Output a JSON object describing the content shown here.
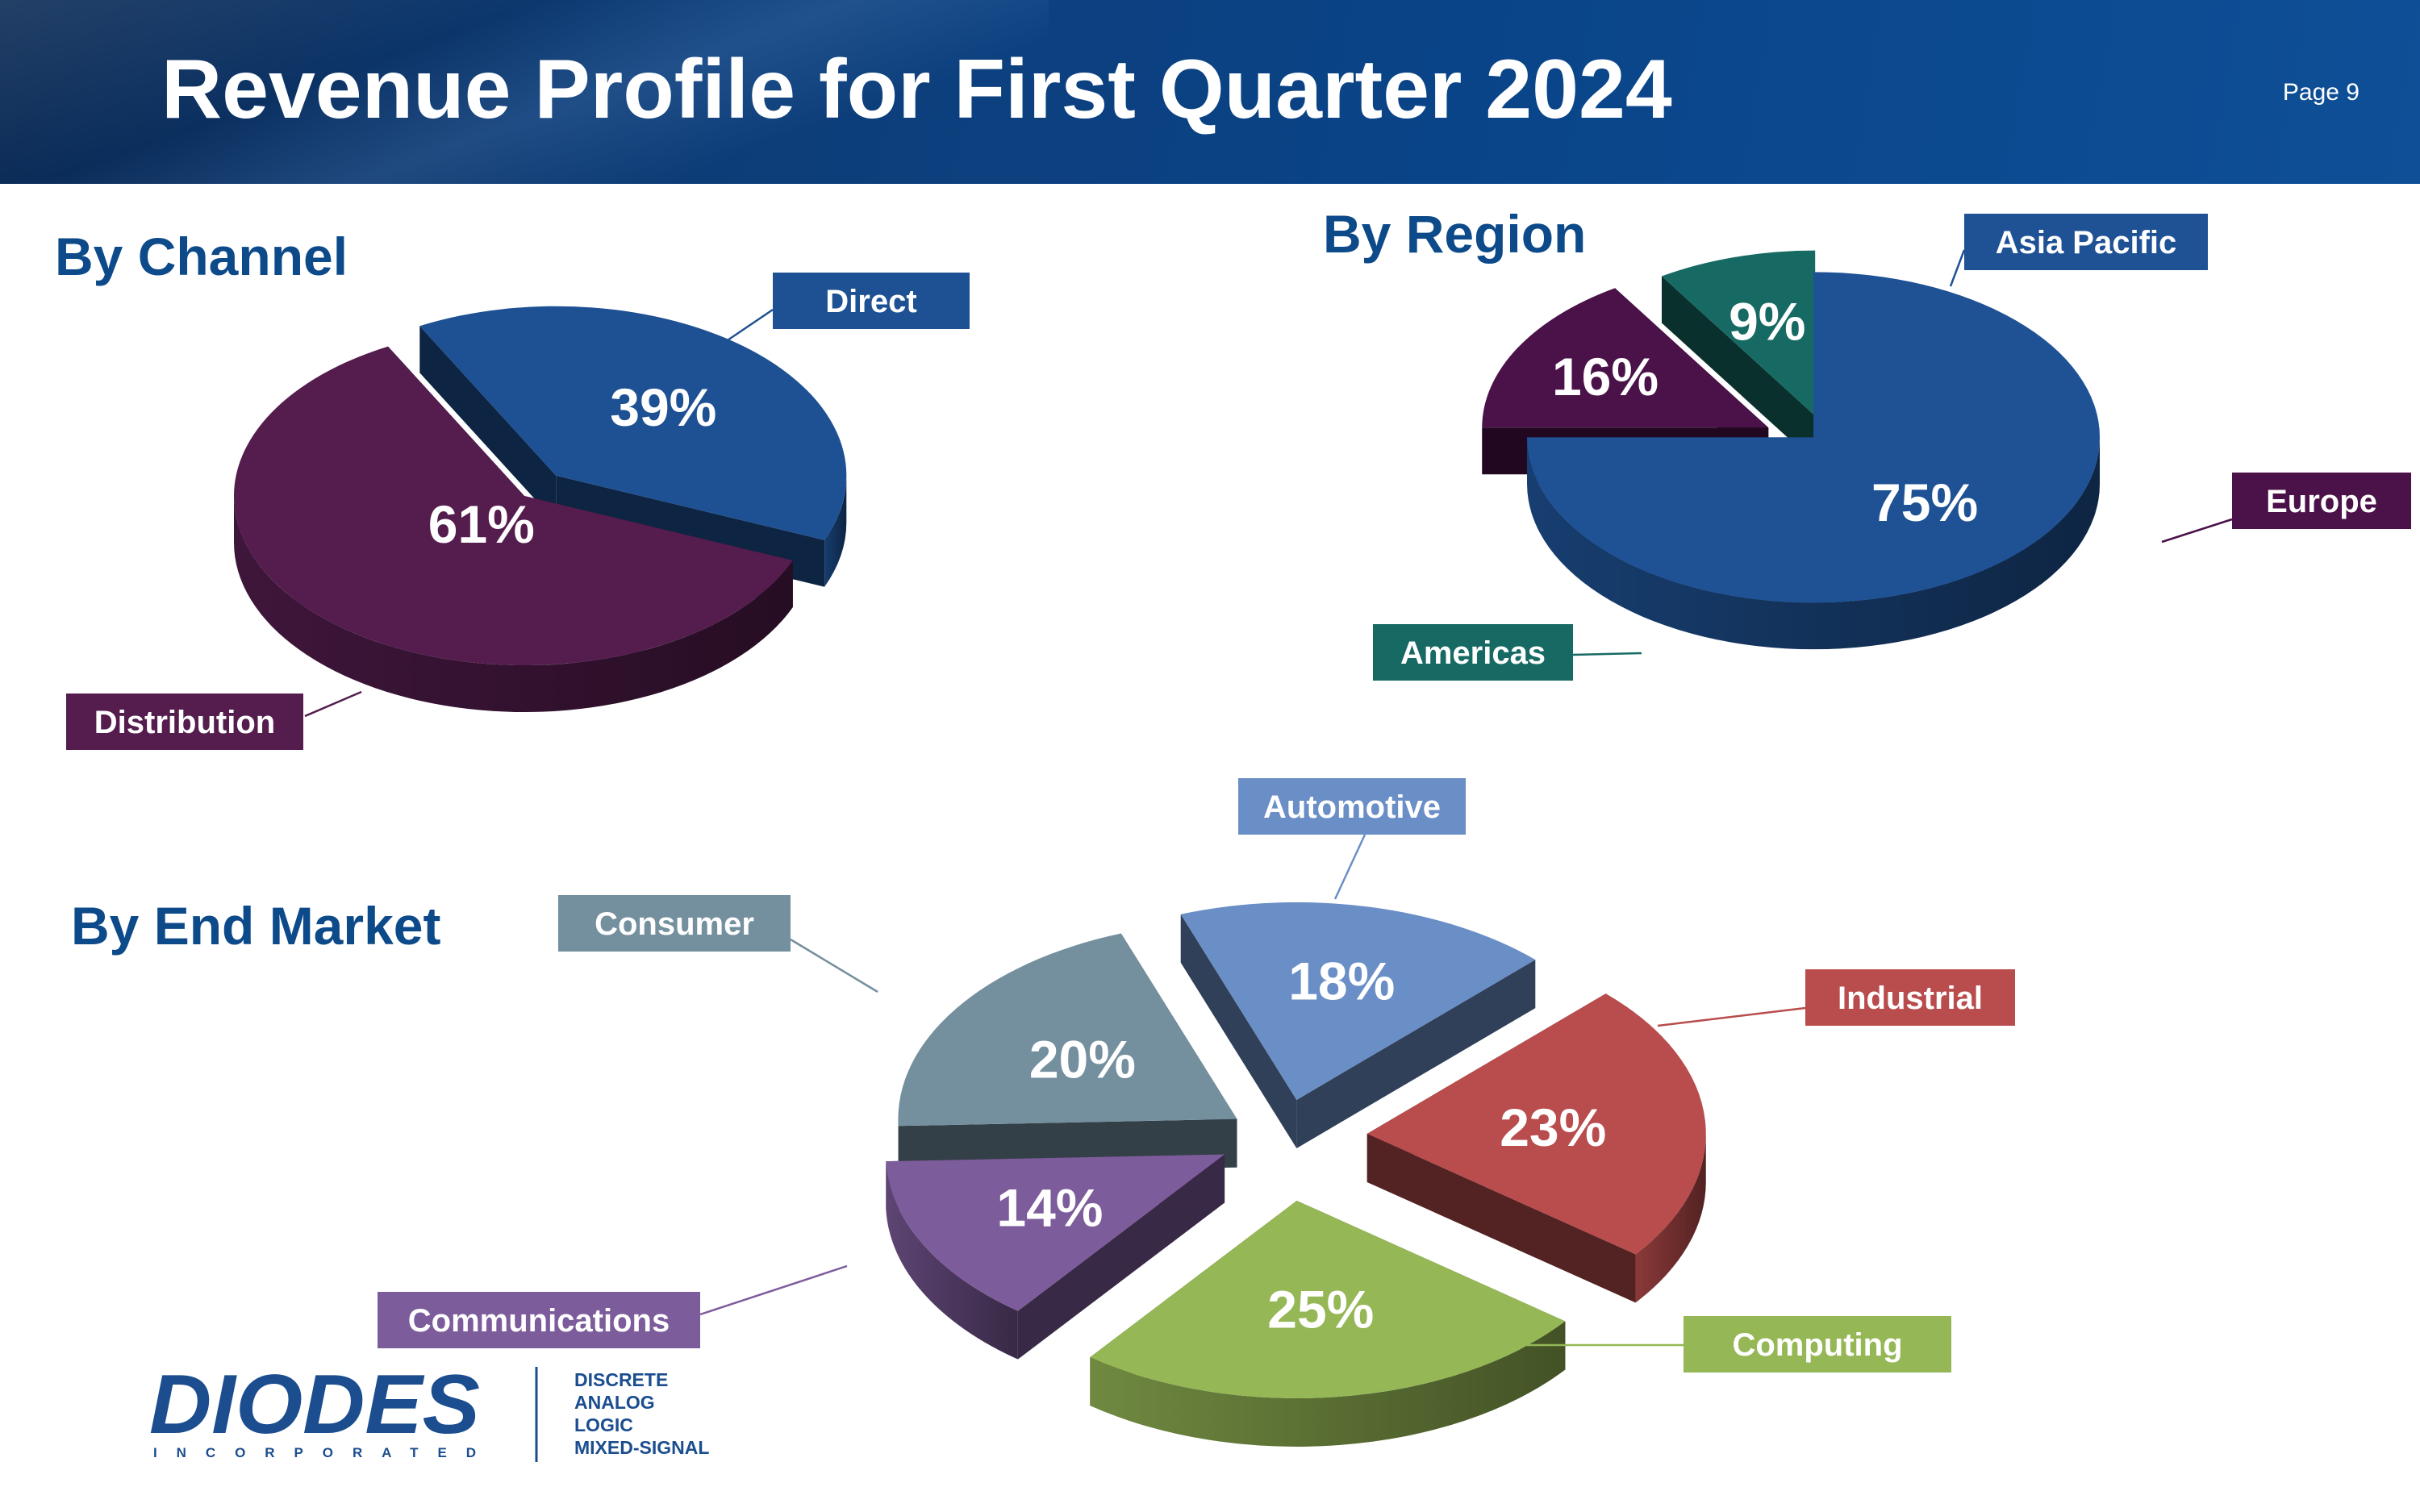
{
  "header": {
    "title": "Revenue Profile for First Quarter 2024",
    "page_label": "Page 9"
  },
  "chart_data": [
    {
      "type": "pie",
      "title": "By Channel",
      "categories": [
        "Direct",
        "Distribution"
      ],
      "values": [
        39,
        61
      ],
      "value_labels": [
        "39%",
        "61%"
      ],
      "colors": [
        "#1e5193",
        "#541d4e"
      ]
    },
    {
      "type": "pie",
      "title": "By Region",
      "categories": [
        "Asia Pacific",
        "Europe",
        "Americas"
      ],
      "values": [
        75,
        16,
        9
      ],
      "value_labels": [
        "75%",
        "16%",
        "9%"
      ],
      "colors": [
        "#1f5295",
        "#4a1248",
        "#176a63"
      ]
    },
    {
      "type": "pie",
      "title": "By End Market",
      "categories": [
        "Automotive",
        "Industrial",
        "Computing",
        "Communications",
        "Consumer"
      ],
      "values": [
        18,
        23,
        25,
        14,
        20
      ],
      "value_labels": [
        "18%",
        "23%",
        "25%",
        "14%",
        "20%"
      ],
      "colors": [
        "#6a8ec6",
        "#b94c4c",
        "#95b755",
        "#7d5c9b",
        "#748f9e"
      ]
    }
  ],
  "logo": {
    "name": "DIODES",
    "subtitle": "INCORPORATED",
    "tagline": [
      "DISCRETE",
      "ANALOG",
      "LOGIC",
      "MIXED-SIGNAL"
    ]
  }
}
